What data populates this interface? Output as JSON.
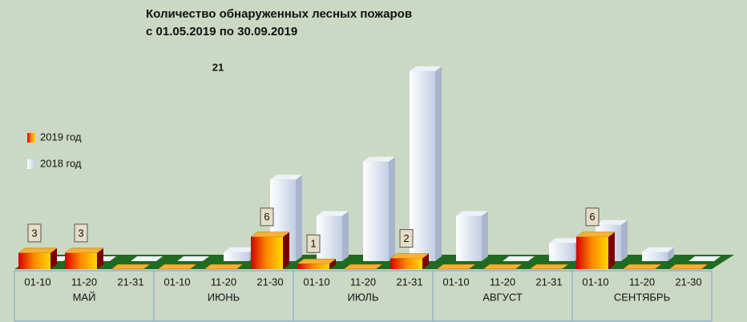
{
  "chart_data": {
    "type": "bar3d",
    "title": "Количество обнаруженных лесных пожаров",
    "subtitle": "с 01.05.2019  по  30.09.2019",
    "months": [
      "МАЙ",
      "ИЮНЬ",
      "ИЮЛЬ",
      "АВГУСТ",
      "СЕНТЯБРЬ"
    ],
    "categories": [
      "01-10",
      "11-20",
      "21-31",
      "01-10",
      "11-20",
      "21-30",
      "01-10",
      "11-20",
      "21-31",
      "01-10",
      "11-20",
      "21-31",
      "01-10",
      "11-20",
      "21-30"
    ],
    "series": [
      {
        "name": "2018 год",
        "color": "#dfe6f2",
        "values": [
          0,
          0,
          0,
          0,
          1,
          9,
          5,
          11,
          21,
          5,
          0,
          2,
          4,
          1,
          0
        ],
        "value_labels": [
          null,
          null,
          null,
          null,
          null,
          null,
          null,
          null,
          "21",
          null,
          null,
          null,
          null,
          null,
          null
        ]
      },
      {
        "name": "2019 год",
        "color": "#f07a00",
        "values": [
          3,
          3,
          0,
          0,
          0,
          6,
          1,
          0,
          2,
          0,
          0,
          0,
          6,
          0,
          0
        ],
        "value_labels": [
          "3",
          "3",
          null,
          null,
          null,
          "6",
          "1",
          null,
          "2",
          null,
          null,
          null,
          "6",
          null,
          null
        ]
      }
    ]
  }
}
